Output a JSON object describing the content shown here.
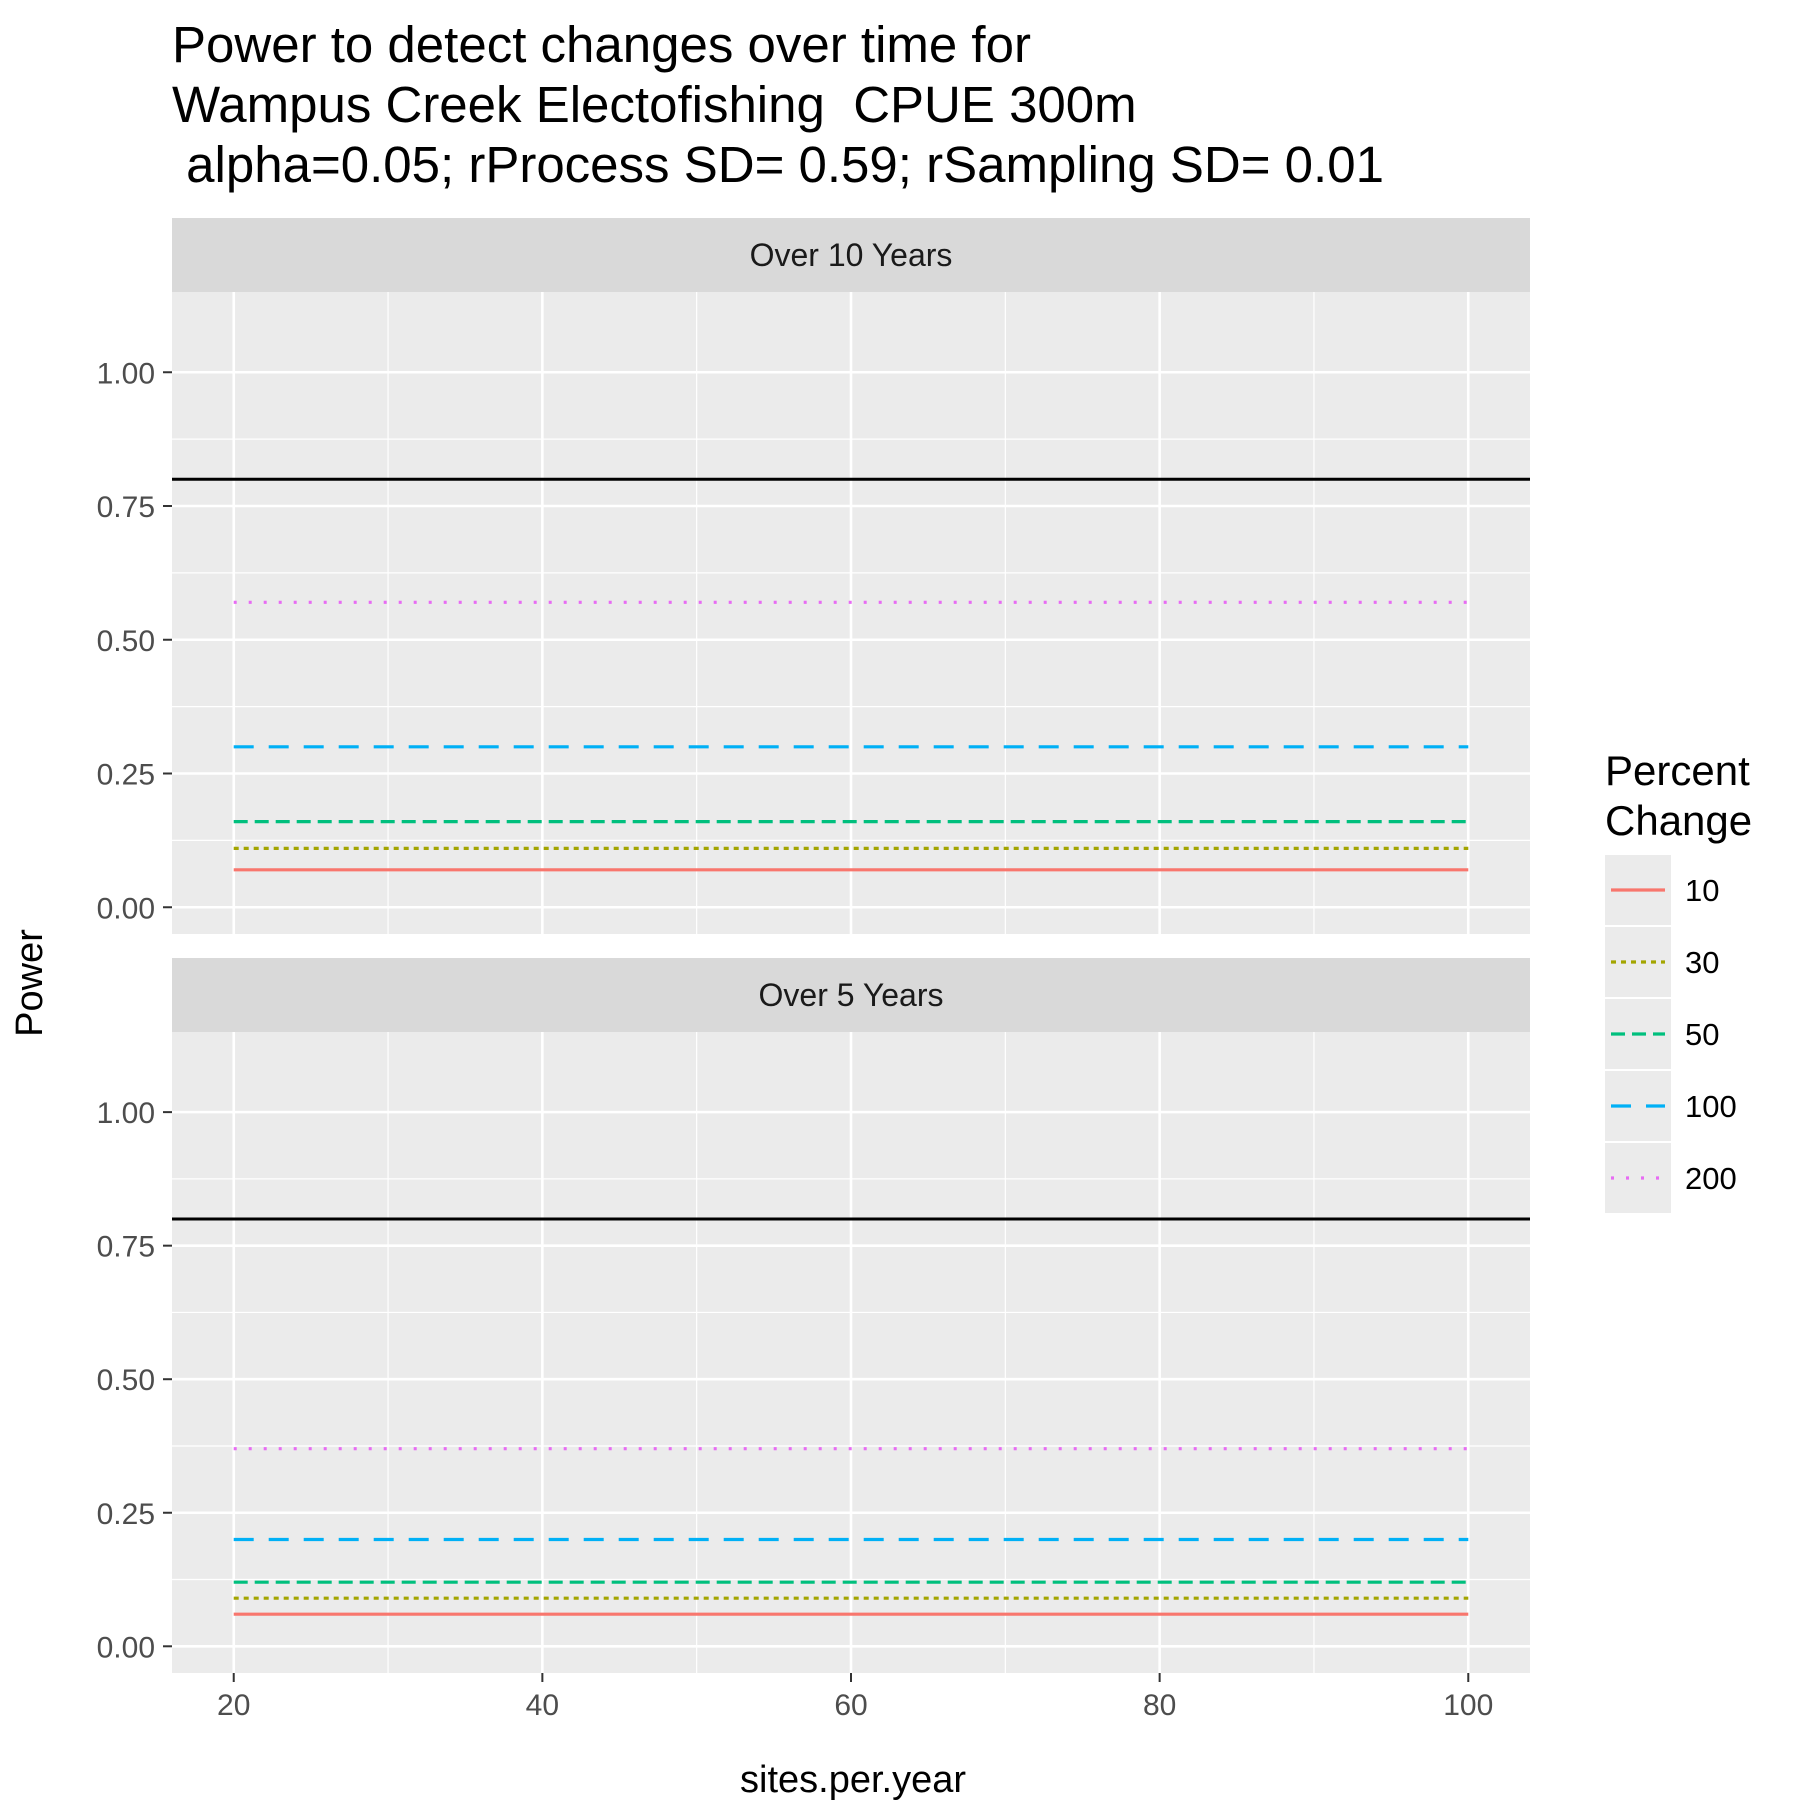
{
  "chart_data": {
    "type": "line",
    "title_lines": [
      "Power to detect changes over time for",
      "Wampus Creek Electofishing  CPUE 300m",
      " alpha=0.05; rProcess SD= 0.59; rSampling SD= 0.01"
    ],
    "xlabel": "sites.per.year",
    "ylabel": "Power",
    "xlim": [
      16,
      104
    ],
    "ylim": [
      -0.05,
      1.15
    ],
    "x_ticks": [
      20,
      40,
      60,
      80,
      100
    ],
    "x_tick_labels": [
      "20",
      "40",
      "60",
      "80",
      "100"
    ],
    "y_ticks": [
      0,
      0.25,
      0.5,
      0.75,
      1.0
    ],
    "y_tick_labels": [
      "0.00",
      "0.25",
      "0.50",
      "0.75",
      "1.00"
    ],
    "grid": true,
    "reference_line": {
      "y": 0.8,
      "color": "#000000"
    },
    "legend": {
      "title_lines": [
        "Percent",
        "Change"
      ],
      "position": "right",
      "entries": [
        {
          "label": "10",
          "color": "#F8766D",
          "dash": "solid"
        },
        {
          "label": "30",
          "color": "#A3A500",
          "dash": "dotted-short"
        },
        {
          "label": "50",
          "color": "#00BF7D",
          "dash": "dashed"
        },
        {
          "label": "100",
          "color": "#00B0F6",
          "dash": "longdash"
        },
        {
          "label": "200",
          "color": "#E76BF3",
          "dash": "dotted"
        }
      ]
    },
    "panels": [
      {
        "strip": "Over 10 Years",
        "series": [
          {
            "name": "10",
            "x": [
              20,
              100
            ],
            "y": [
              0.07,
              0.07
            ]
          },
          {
            "name": "30",
            "x": [
              20,
              100
            ],
            "y": [
              0.11,
              0.11
            ]
          },
          {
            "name": "50",
            "x": [
              20,
              100
            ],
            "y": [
              0.16,
              0.16
            ]
          },
          {
            "name": "100",
            "x": [
              20,
              100
            ],
            "y": [
              0.3,
              0.3
            ]
          },
          {
            "name": "200",
            "x": [
              20,
              100
            ],
            "y": [
              0.57,
              0.57
            ]
          }
        ]
      },
      {
        "strip": "Over 5 Years",
        "series": [
          {
            "name": "10",
            "x": [
              20,
              100
            ],
            "y": [
              0.06,
              0.06
            ]
          },
          {
            "name": "30",
            "x": [
              20,
              100
            ],
            "y": [
              0.09,
              0.09
            ]
          },
          {
            "name": "50",
            "x": [
              20,
              100
            ],
            "y": [
              0.12,
              0.12
            ]
          },
          {
            "name": "100",
            "x": [
              20,
              100
            ],
            "y": [
              0.2,
              0.2
            ]
          },
          {
            "name": "200",
            "x": [
              20,
              100
            ],
            "y": [
              0.37,
              0.37
            ]
          }
        ]
      }
    ]
  }
}
